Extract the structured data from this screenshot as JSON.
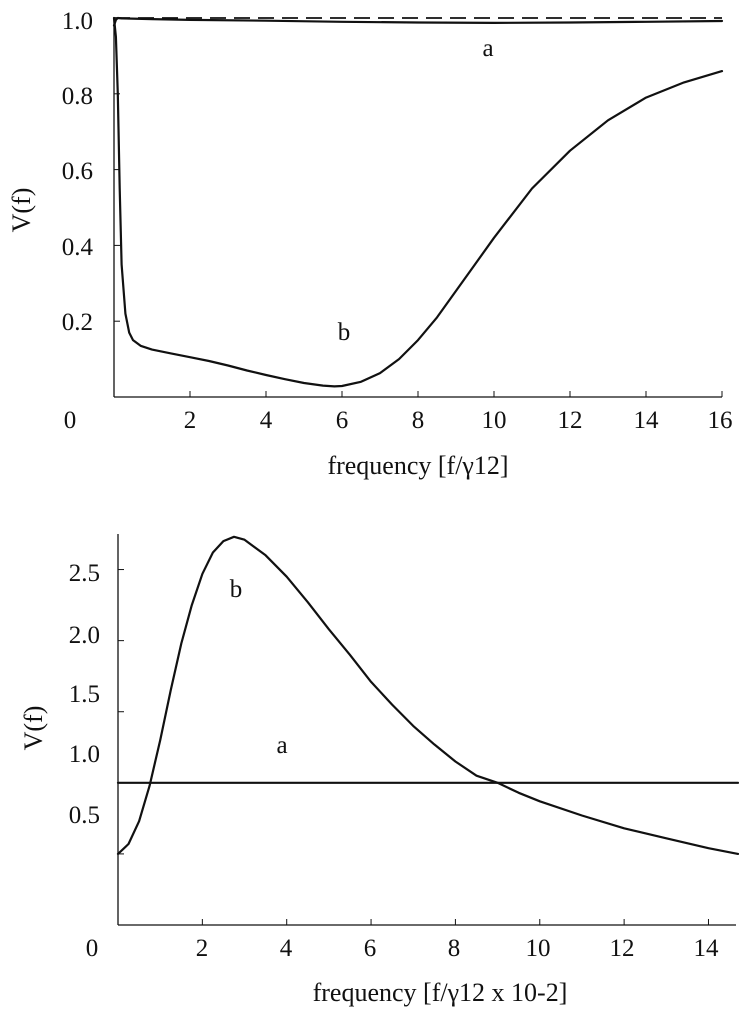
{
  "chart_data": [
    {
      "type": "line",
      "title": "",
      "xlabel": "frequency [f/γ12]",
      "ylabel": "V(f)",
      "xlim": [
        0,
        16
      ],
      "ylim": [
        0,
        1.0
      ],
      "x_ticks": [
        "0",
        "2",
        "4",
        "6",
        "8",
        "10",
        "12",
        "14",
        "16"
      ],
      "y_ticks": [
        "1.0",
        "0.8",
        "0.6",
        "0.4",
        "0.2"
      ],
      "series": [
        {
          "name": "a",
          "style": "solid",
          "x": [
            0,
            0.05,
            0.1,
            0.2,
            1,
            2,
            4,
            6,
            8,
            10,
            12,
            14,
            16
          ],
          "y": [
            0.98,
            0.995,
            1.0,
            0.999,
            0.997,
            0.995,
            0.993,
            0.99,
            0.988,
            0.987,
            0.988,
            0.99,
            0.992
          ]
        },
        {
          "name": "b",
          "style": "solid",
          "x": [
            0,
            0.05,
            0.1,
            0.15,
            0.2,
            0.3,
            0.4,
            0.5,
            0.7,
            1,
            1.5,
            2,
            2.5,
            3,
            3.5,
            4,
            4.5,
            5,
            5.5,
            5.8,
            6,
            6.5,
            7,
            7.5,
            8,
            8.5,
            9,
            9.5,
            10,
            11,
            12,
            13,
            14,
            15,
            16
          ],
          "y": [
            1.0,
            0.95,
            0.8,
            0.55,
            0.35,
            0.22,
            0.17,
            0.15,
            0.135,
            0.125,
            0.115,
            0.105,
            0.095,
            0.083,
            0.07,
            0.058,
            0.047,
            0.037,
            0.03,
            0.028,
            0.029,
            0.04,
            0.063,
            0.1,
            0.15,
            0.21,
            0.28,
            0.35,
            0.42,
            0.55,
            0.65,
            0.73,
            0.79,
            0.83,
            0.86
          ]
        },
        {
          "name": "",
          "style": "dashed",
          "x": [
            0,
            16
          ],
          "y": [
            1.0,
            1.0
          ]
        }
      ],
      "annotations": [
        {
          "text": "a",
          "x": 10.0,
          "y": 0.93
        },
        {
          "text": "b",
          "x": 6.0,
          "y": 0.17
        }
      ]
    },
    {
      "type": "line",
      "title": "",
      "xlabel": "frequency [f/γ12 x 10-2]",
      "ylabel": "V(f)",
      "xlim": [
        0,
        14.7
      ],
      "ylim": [
        0,
        2.75
      ],
      "x_ticks": [
        "0",
        "2",
        "4",
        "6",
        "8",
        "10",
        "12",
        "14"
      ],
      "y_ticks": [
        "2.5",
        "2.0",
        "1.5",
        "1.0",
        "0.5"
      ],
      "series": [
        {
          "name": "a",
          "style": "solid",
          "x": [
            0,
            14.7
          ],
          "y": [
            1.0,
            1.0
          ]
        },
        {
          "name": "b",
          "style": "solid",
          "x": [
            0,
            0.25,
            0.5,
            0.75,
            1,
            1.25,
            1.5,
            1.75,
            2,
            2.25,
            2.5,
            2.75,
            3,
            3.5,
            4,
            4.5,
            5,
            5.5,
            6,
            6.5,
            7,
            7.5,
            8,
            8.5,
            9,
            9.5,
            10,
            11,
            12,
            13,
            14,
            14.7
          ],
          "y": [
            0.5,
            0.57,
            0.73,
            0.98,
            1.3,
            1.65,
            1.98,
            2.25,
            2.47,
            2.62,
            2.7,
            2.73,
            2.71,
            2.6,
            2.45,
            2.27,
            2.08,
            1.9,
            1.71,
            1.55,
            1.4,
            1.27,
            1.15,
            1.05,
            1.0,
            0.93,
            0.87,
            0.77,
            0.68,
            0.61,
            0.54,
            0.5
          ]
        }
      ],
      "annotations": [
        {
          "text": "a",
          "x": 3.9,
          "y": 1.12
        },
        {
          "text": "b",
          "x": 2.8,
          "y": 2.35
        }
      ]
    }
  ]
}
